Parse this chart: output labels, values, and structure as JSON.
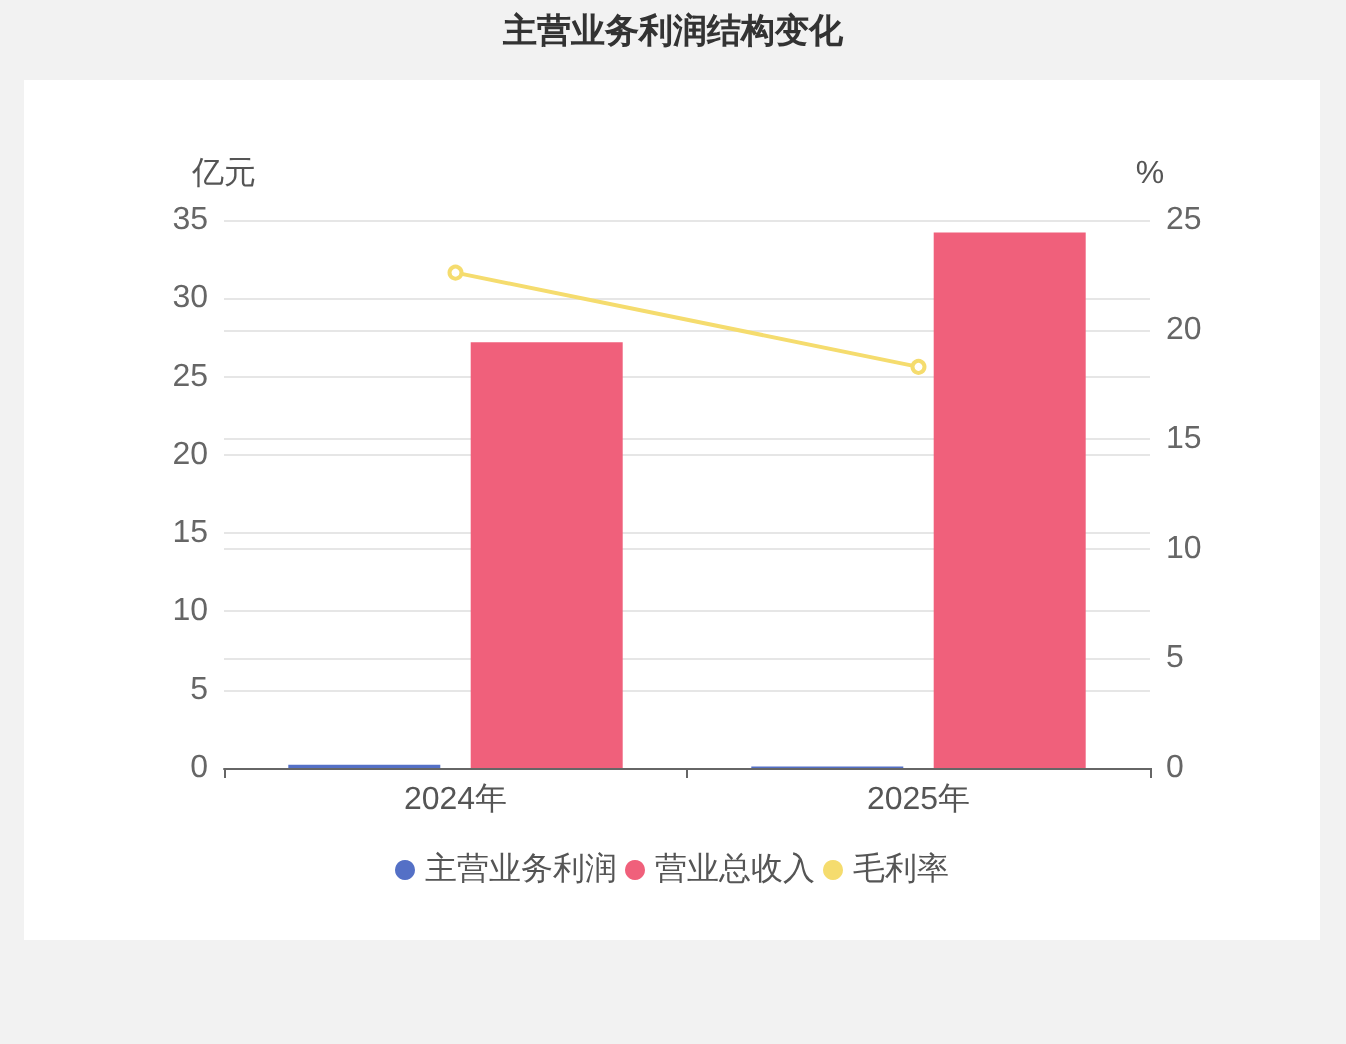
{
  "chart_data": {
    "type": "bar",
    "title": "主营业务利润结构变化",
    "ylabel": "亿元",
    "y2label": "%",
    "categories": [
      "2024年",
      "2025年"
    ],
    "series": [
      {
        "name": "主营业务利润",
        "color": "#5470c6",
        "values": [
          0.2,
          0.1
        ]
      },
      {
        "name": "营业总收入",
        "color": "#f0607b",
        "values": [
          27.2,
          34.2
        ]
      },
      {
        "name": "毛利率",
        "type": "line",
        "axis": "y2",
        "color": "#f5dc6e",
        "marker": "circle",
        "values": [
          22.6,
          18.3
        ]
      }
    ],
    "ylim": [
      0,
      35
    ],
    "yticks": [
      0,
      5,
      10,
      15,
      20,
      25,
      30,
      35
    ],
    "y2lim": [
      0,
      25
    ],
    "y2ticks": [
      0,
      5,
      10,
      15,
      20,
      25
    ],
    "grid": true,
    "legend": "bottom"
  }
}
